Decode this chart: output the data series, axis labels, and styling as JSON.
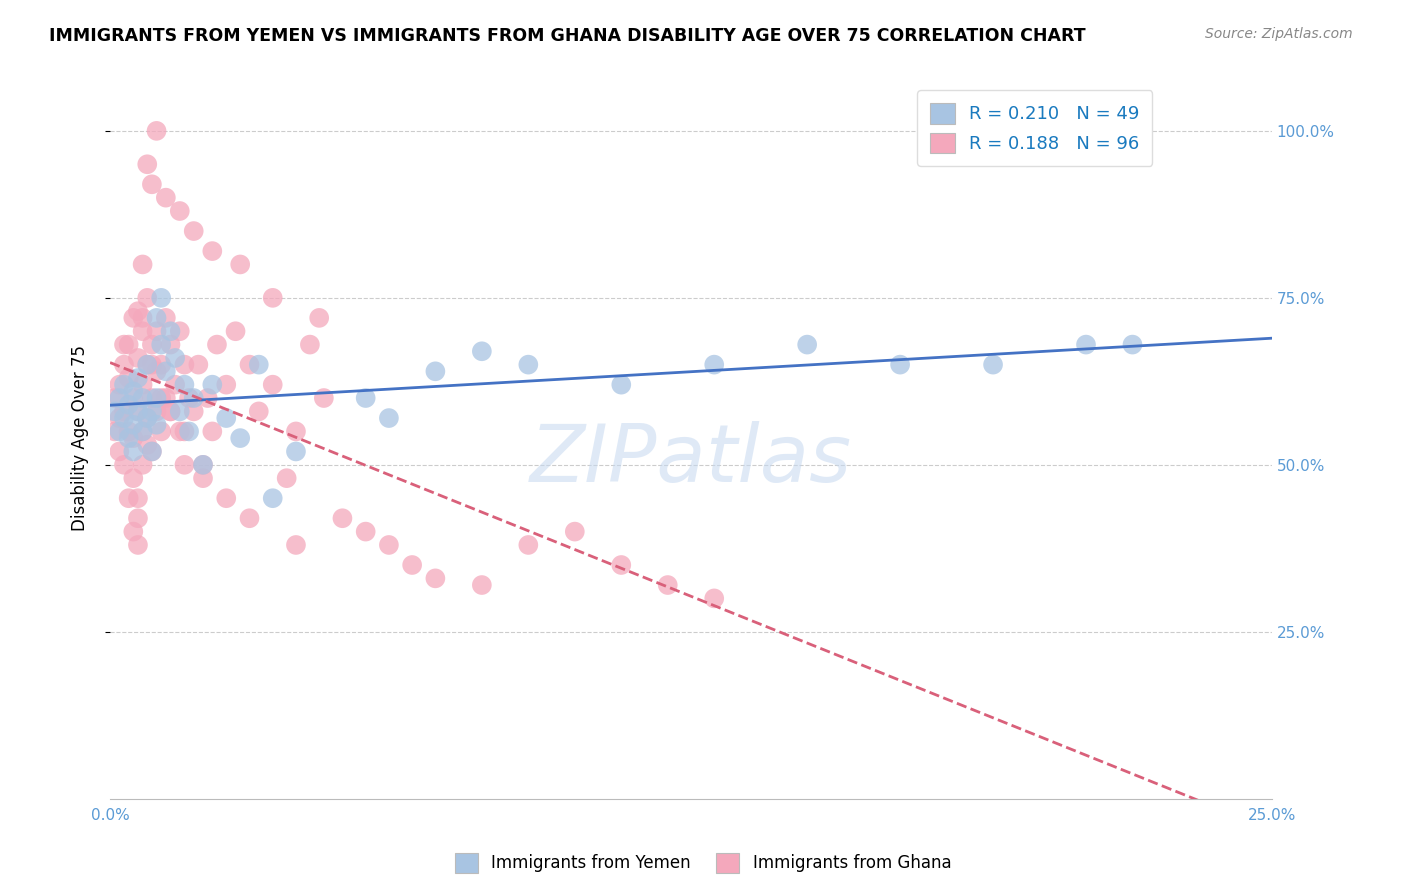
{
  "title": "IMMIGRANTS FROM YEMEN VS IMMIGRANTS FROM GHANA DISABILITY AGE OVER 75 CORRELATION CHART",
  "source": "Source: ZipAtlas.com",
  "ylabel": "Disability Age Over 75",
  "watermark": "ZIPatlas",
  "blue_color": "#a8c4e2",
  "pink_color": "#f4a8bc",
  "blue_line_color": "#4472c4",
  "pink_line_color": "#d9607a",
  "xmin": 0.0,
  "xmax": 0.25,
  "ymin": 0.0,
  "ymax": 1.08,
  "yticks": [
    0.25,
    0.5,
    0.75,
    1.0
  ],
  "ytick_labels": [
    "25.0%",
    "50.0%",
    "75.0%",
    "100.0%"
  ],
  "xticks": [
    0.0,
    0.05,
    0.1,
    0.15,
    0.2,
    0.25
  ],
  "xtick_labels": [
    "0.0%",
    "",
    "",
    "",
    "",
    "25.0%"
  ],
  "legend_r_blue": "R = 0.210",
  "legend_n_blue": "N = 49",
  "legend_r_pink": "R = 0.188",
  "legend_n_pink": "N = 96",
  "legend_label_blue": "Immigrants from Yemen",
  "legend_label_pink": "Immigrants from Ghana",
  "yemen_x": [
    0.001,
    0.002,
    0.002,
    0.003,
    0.003,
    0.004,
    0.004,
    0.005,
    0.005,
    0.005,
    0.006,
    0.006,
    0.007,
    0.007,
    0.008,
    0.008,
    0.009,
    0.009,
    0.01,
    0.01,
    0.01,
    0.011,
    0.011,
    0.012,
    0.013,
    0.014,
    0.015,
    0.016,
    0.017,
    0.018,
    0.02,
    0.022,
    0.025,
    0.028,
    0.032,
    0.04,
    0.055,
    0.07,
    0.09,
    0.11,
    0.13,
    0.15,
    0.17,
    0.19,
    0.21,
    0.22,
    0.035,
    0.06,
    0.08
  ],
  "yemen_y": [
    0.58,
    0.6,
    0.55,
    0.57,
    0.62,
    0.54,
    0.59,
    0.61,
    0.56,
    0.52,
    0.58,
    0.63,
    0.55,
    0.6,
    0.57,
    0.65,
    0.52,
    0.58,
    0.56,
    0.6,
    0.72,
    0.68,
    0.75,
    0.64,
    0.7,
    0.66,
    0.58,
    0.62,
    0.55,
    0.6,
    0.5,
    0.62,
    0.57,
    0.54,
    0.65,
    0.52,
    0.6,
    0.64,
    0.65,
    0.62,
    0.65,
    0.68,
    0.65,
    0.65,
    0.68,
    0.68,
    0.45,
    0.57,
    0.67
  ],
  "ghana_x": [
    0.001,
    0.001,
    0.002,
    0.002,
    0.002,
    0.003,
    0.003,
    0.003,
    0.004,
    0.004,
    0.004,
    0.005,
    0.005,
    0.005,
    0.005,
    0.006,
    0.006,
    0.006,
    0.006,
    0.007,
    0.007,
    0.007,
    0.007,
    0.008,
    0.008,
    0.008,
    0.009,
    0.009,
    0.009,
    0.01,
    0.01,
    0.01,
    0.011,
    0.011,
    0.012,
    0.012,
    0.013,
    0.013,
    0.014,
    0.015,
    0.015,
    0.016,
    0.016,
    0.017,
    0.018,
    0.019,
    0.02,
    0.021,
    0.022,
    0.023,
    0.025,
    0.027,
    0.03,
    0.032,
    0.035,
    0.038,
    0.04,
    0.043,
    0.046,
    0.05,
    0.055,
    0.06,
    0.065,
    0.07,
    0.08,
    0.09,
    0.1,
    0.11,
    0.12,
    0.13,
    0.008,
    0.009,
    0.01,
    0.012,
    0.015,
    0.018,
    0.022,
    0.028,
    0.035,
    0.045,
    0.006,
    0.007,
    0.008,
    0.004,
    0.005,
    0.003,
    0.006,
    0.007,
    0.009,
    0.011,
    0.013,
    0.016,
    0.02,
    0.025,
    0.03,
    0.04
  ],
  "ghana_y": [
    0.6,
    0.55,
    0.57,
    0.62,
    0.52,
    0.65,
    0.58,
    0.5,
    0.63,
    0.55,
    0.68,
    0.6,
    0.72,
    0.54,
    0.48,
    0.66,
    0.58,
    0.73,
    0.45,
    0.62,
    0.7,
    0.55,
    0.8,
    0.65,
    0.57,
    0.75,
    0.6,
    0.68,
    0.52,
    0.64,
    0.58,
    0.7,
    0.55,
    0.65,
    0.6,
    0.72,
    0.58,
    0.68,
    0.62,
    0.7,
    0.55,
    0.65,
    0.5,
    0.6,
    0.58,
    0.65,
    0.48,
    0.6,
    0.55,
    0.68,
    0.62,
    0.7,
    0.65,
    0.58,
    0.62,
    0.48,
    0.55,
    0.68,
    0.6,
    0.42,
    0.4,
    0.38,
    0.35,
    0.33,
    0.32,
    0.38,
    0.4,
    0.35,
    0.32,
    0.3,
    0.95,
    0.92,
    1.0,
    0.9,
    0.88,
    0.85,
    0.82,
    0.8,
    0.75,
    0.72,
    0.42,
    0.5,
    0.53,
    0.45,
    0.4,
    0.68,
    0.38,
    0.72,
    0.65,
    0.6,
    0.58,
    0.55,
    0.5,
    0.45,
    0.42,
    0.38
  ]
}
